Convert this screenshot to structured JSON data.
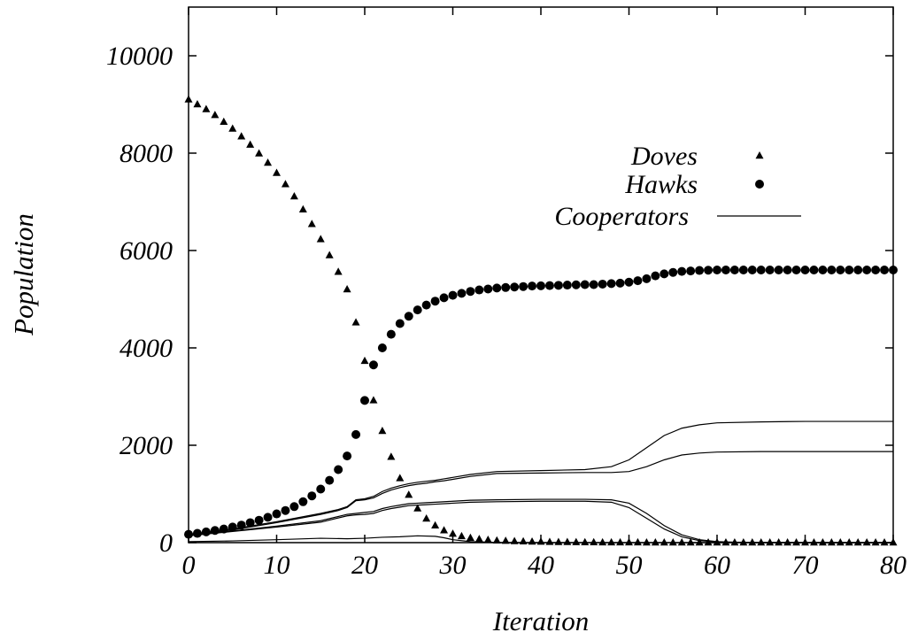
{
  "chart_data": {
    "type": "scatter",
    "title": "",
    "xlabel": "Iteration",
    "ylabel": "Population",
    "xlim": [
      0,
      80
    ],
    "ylim": [
      0,
      11000
    ],
    "x_ticks": [
      0,
      10,
      20,
      30,
      40,
      50,
      60,
      70,
      80
    ],
    "y_ticks": [
      0,
      2000,
      4000,
      6000,
      8000,
      10000
    ],
    "grid": false,
    "legend_position": "right",
    "series": [
      {
        "name": "Doves",
        "marker": "triangle",
        "x": [
          0,
          1,
          2,
          3,
          4,
          5,
          6,
          7,
          8,
          9,
          10,
          11,
          12,
          13,
          14,
          15,
          16,
          17,
          18,
          19,
          20,
          21,
          22,
          23,
          24,
          25,
          26,
          27,
          28,
          29,
          30,
          31,
          32,
          33,
          34,
          35,
          36,
          37,
          38,
          39,
          40,
          41,
          42,
          43,
          44,
          45,
          46,
          47,
          48,
          49,
          50,
          51,
          52,
          53,
          54,
          55,
          56,
          57,
          58,
          59,
          60,
          61,
          62,
          63,
          64,
          65,
          66,
          67,
          68,
          69,
          70,
          71,
          72,
          73,
          74,
          75,
          76,
          77,
          78,
          79,
          80
        ],
        "y": [
          9100,
          9000,
          8900,
          8780,
          8640,
          8500,
          8340,
          8170,
          7990,
          7800,
          7590,
          7360,
          7110,
          6840,
          6540,
          6230,
          5900,
          5560,
          5200,
          4520,
          3730,
          2920,
          2290,
          1760,
          1320,
          980,
          700,
          490,
          350,
          250,
          180,
          130,
          95,
          70,
          55,
          42,
          35,
          28,
          22,
          18,
          15,
          12,
          10,
          8,
          6,
          5,
          4,
          3,
          3,
          2,
          2,
          2,
          1,
          1,
          1,
          1,
          1,
          0,
          0,
          0,
          0,
          0,
          0,
          0,
          0,
          0,
          0,
          0,
          0,
          0,
          0,
          0,
          0,
          0,
          0,
          0,
          0,
          0,
          0,
          0,
          0
        ]
      },
      {
        "name": "Hawks",
        "marker": "circle",
        "x": [
          0,
          1,
          2,
          3,
          4,
          5,
          6,
          7,
          8,
          9,
          10,
          11,
          12,
          13,
          14,
          15,
          16,
          17,
          18,
          19,
          20,
          21,
          22,
          23,
          24,
          25,
          26,
          27,
          28,
          29,
          30,
          31,
          32,
          33,
          34,
          35,
          36,
          37,
          38,
          39,
          40,
          41,
          42,
          43,
          44,
          45,
          46,
          47,
          48,
          49,
          50,
          51,
          52,
          53,
          54,
          55,
          56,
          57,
          58,
          59,
          60,
          61,
          62,
          63,
          64,
          65,
          66,
          67,
          68,
          69,
          70,
          71,
          72,
          73,
          74,
          75,
          76,
          77,
          78,
          79,
          80
        ],
        "y": [
          170,
          190,
          220,
          250,
          280,
          320,
          360,
          410,
          460,
          520,
          590,
          660,
          740,
          840,
          960,
          1100,
          1280,
          1500,
          1780,
          2220,
          2920,
          3650,
          4000,
          4280,
          4500,
          4650,
          4780,
          4880,
          4960,
          5030,
          5080,
          5120,
          5160,
          5190,
          5210,
          5230,
          5240,
          5250,
          5260,
          5270,
          5275,
          5280,
          5285,
          5290,
          5295,
          5300,
          5300,
          5310,
          5320,
          5330,
          5350,
          5380,
          5420,
          5480,
          5520,
          5550,
          5570,
          5580,
          5590,
          5595,
          5600,
          5600,
          5600,
          5600,
          5600,
          5600,
          5600,
          5600,
          5600,
          5600,
          5600,
          5600,
          5600,
          5600,
          5600,
          5600,
          5600,
          5600,
          5600,
          5600,
          5600
        ]
      },
      {
        "name": "Cooperators",
        "marker": "line",
        "lines": [
          {
            "x": [
              0,
              5,
              10,
              15,
              17,
              18,
              19,
              20,
              21,
              22,
              23,
              24,
              25,
              26,
              27,
              28,
              29,
              30,
              32,
              35,
              40,
              45,
              48,
              50,
              52,
              54,
              56,
              58,
              60,
              65,
              70,
              75,
              80
            ],
            "y": [
              170,
              280,
              430,
              600,
              680,
              740,
              880,
              900,
              950,
              1050,
              1120,
              1170,
              1210,
              1240,
              1260,
              1280,
              1310,
              1340,
              1400,
              1460,
              1480,
              1500,
              1560,
              1700,
              1950,
              2200,
              2350,
              2420,
              2460,
              2480,
              2490,
              2490,
              2490
            ]
          },
          {
            "x": [
              0,
              5,
              10,
              15,
              17,
              18,
              19,
              20,
              21,
              22,
              23,
              24,
              25,
              26,
              27,
              28,
              29,
              30,
              32,
              35,
              40,
              45,
              48,
              50,
              52,
              54,
              56,
              58,
              60,
              65,
              70,
              75,
              80
            ],
            "y": [
              160,
              260,
              410,
              580,
              660,
              720,
              860,
              880,
              920,
              1010,
              1080,
              1130,
              1170,
              1200,
              1220,
              1250,
              1270,
              1300,
              1360,
              1420,
              1430,
              1440,
              1440,
              1460,
              1560,
              1700,
              1800,
              1840,
              1860,
              1870,
              1870,
              1870,
              1870
            ]
          },
          {
            "x": [
              0,
              5,
              10,
              15,
              18,
              19,
              20,
              21,
              22,
              23,
              24,
              25,
              26,
              27,
              28,
              30,
              32,
              35,
              40,
              45,
              48,
              50,
              52,
              54,
              56,
              58,
              60,
              62,
              65,
              70,
              80
            ],
            "y": [
              150,
              240,
              340,
              450,
              580,
              600,
              620,
              640,
              700,
              740,
              770,
              800,
              810,
              820,
              830,
              850,
              870,
              880,
              890,
              890,
              880,
              810,
              600,
              350,
              160,
              60,
              20,
              10,
              5,
              0,
              0
            ]
          },
          {
            "x": [
              0,
              5,
              10,
              15,
              18,
              19,
              20,
              21,
              22,
              23,
              24,
              25,
              26,
              27,
              28,
              30,
              32,
              35,
              40,
              45,
              48,
              50,
              52,
              54,
              56,
              58,
              60,
              62,
              65,
              70,
              80
            ],
            "y": [
              140,
              230,
              320,
              420,
              550,
              570,
              580,
              600,
              660,
              700,
              730,
              760,
              770,
              780,
              790,
              810,
              830,
              840,
              850,
              850,
              830,
              720,
              500,
              280,
              120,
              40,
              15,
              5,
              0,
              0,
              0
            ]
          },
          {
            "x": [
              0,
              5,
              10,
              15,
              18,
              20,
              22,
              24,
              26,
              28,
              29,
              30,
              32,
              35,
              40,
              50,
              60,
              70,
              80
            ],
            "y": [
              20,
              35,
              60,
              90,
              80,
              90,
              110,
              120,
              140,
              130,
              100,
              60,
              20,
              5,
              0,
              0,
              0,
              0,
              0
            ]
          }
        ]
      }
    ]
  }
}
